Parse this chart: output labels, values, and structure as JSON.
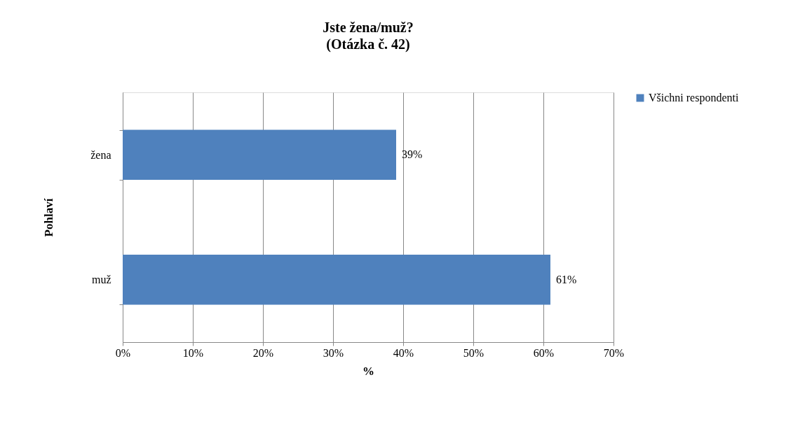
{
  "chart_data": {
    "type": "bar",
    "orientation": "horizontal",
    "title": "Jste žena/muž?",
    "subtitle": "(Otázka č. 42)",
    "xlabel": "%",
    "ylabel": "Pohlaví",
    "categories": [
      "žena",
      "muž"
    ],
    "series": [
      {
        "name": "Všichni respondenti",
        "color": "#4f81bd",
        "values": [
          39,
          61
        ],
        "value_labels": [
          "39%",
          "61%"
        ]
      }
    ],
    "xlim": [
      0,
      70
    ],
    "xticks": [
      {
        "value": 0,
        "label": "0%"
      },
      {
        "value": 10,
        "label": "10%"
      },
      {
        "value": 20,
        "label": "20%"
      },
      {
        "value": 30,
        "label": "30%"
      },
      {
        "value": 40,
        "label": "40%"
      },
      {
        "value": 50,
        "label": "50%"
      },
      {
        "value": 60,
        "label": "60%"
      },
      {
        "value": 70,
        "label": "70%"
      }
    ],
    "grid": "x",
    "legend": "right"
  }
}
